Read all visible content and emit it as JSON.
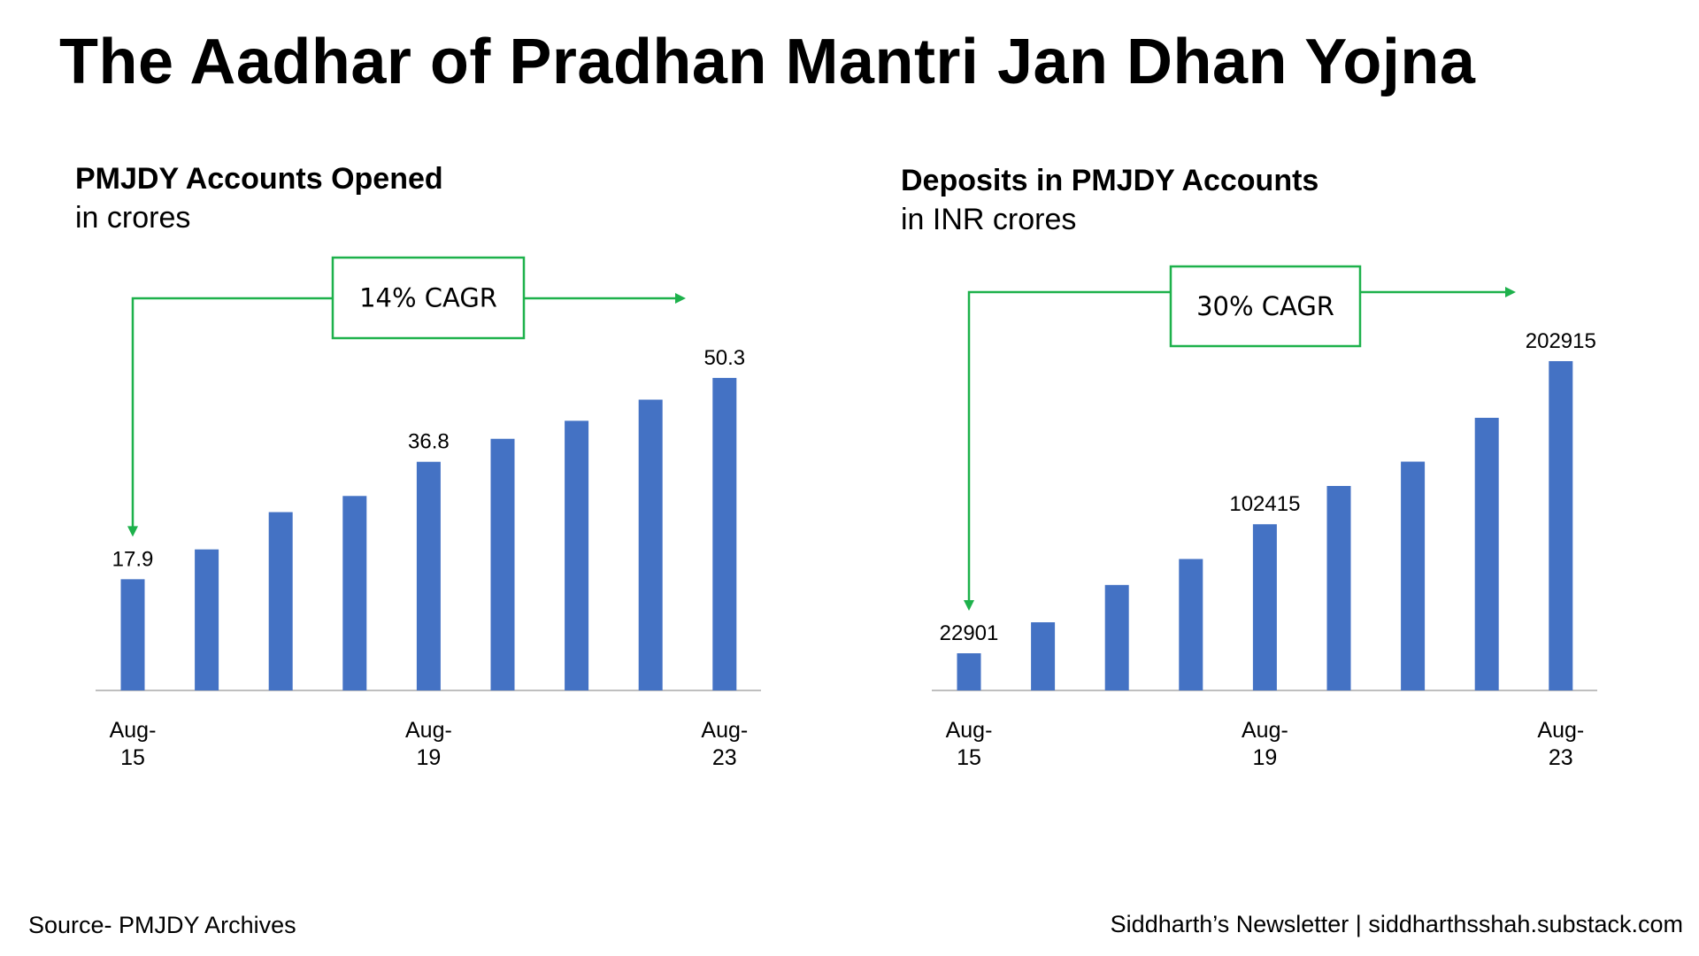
{
  "title": "The Aadhar of Pradhan Mantri Jan Dhan Yojna",
  "footer": {
    "source": "Source- PMJDY Archives",
    "credit": "Siddharth’s Newsletter | siddharthsshah.substack.com"
  },
  "colors": {
    "bar": "#4472C4",
    "annotation": "#1DB14B",
    "axis": "#BFBFBF"
  },
  "chart_data": [
    {
      "type": "bar",
      "title": "PMJDY Accounts Opened",
      "subtitle": "in crores",
      "categories": [
        "Aug-15",
        "",
        "",
        "",
        "Aug-19",
        "",
        "",
        "",
        "Aug-23"
      ],
      "tick_labels": [
        [
          "Aug-",
          "15"
        ],
        null,
        null,
        null,
        [
          "Aug-",
          "19"
        ],
        null,
        null,
        null,
        [
          "Aug-",
          "23"
        ]
      ],
      "values": [
        17.9,
        22.7,
        28.7,
        31.3,
        36.8,
        40.5,
        43.4,
        46.8,
        50.3
      ],
      "data_labels": [
        "17.9",
        "",
        "",
        "",
        "36.8",
        "",
        "",
        "",
        "50.3"
      ],
      "ylim": [
        0,
        52
      ],
      "annotation": {
        "text": "14% CAGR",
        "from_index": 0,
        "to_index": 8
      },
      "grid": false,
      "legend": "none"
    },
    {
      "type": "bar",
      "title": "Deposits in PMJDY Accounts",
      "subtitle": "in INR crores",
      "categories": [
        "Aug-15",
        "",
        "",
        "",
        "Aug-19",
        "",
        "",
        "",
        "Aug-23"
      ],
      "tick_labels": [
        [
          "Aug-",
          "15"
        ],
        null,
        null,
        null,
        [
          "Aug-",
          "19"
        ],
        null,
        null,
        null,
        [
          "Aug-",
          "23"
        ]
      ],
      "values": [
        22901,
        42000,
        65000,
        81000,
        102415,
        126000,
        141000,
        168000,
        202915
      ],
      "data_labels": [
        "22901",
        "",
        "",
        "",
        "102415",
        "",
        "",
        "",
        "202915"
      ],
      "ylim": [
        0,
        210000
      ],
      "annotation": {
        "text": "30% CAGR",
        "from_index": 0,
        "to_index": 8
      },
      "grid": false,
      "legend": "none"
    }
  ]
}
